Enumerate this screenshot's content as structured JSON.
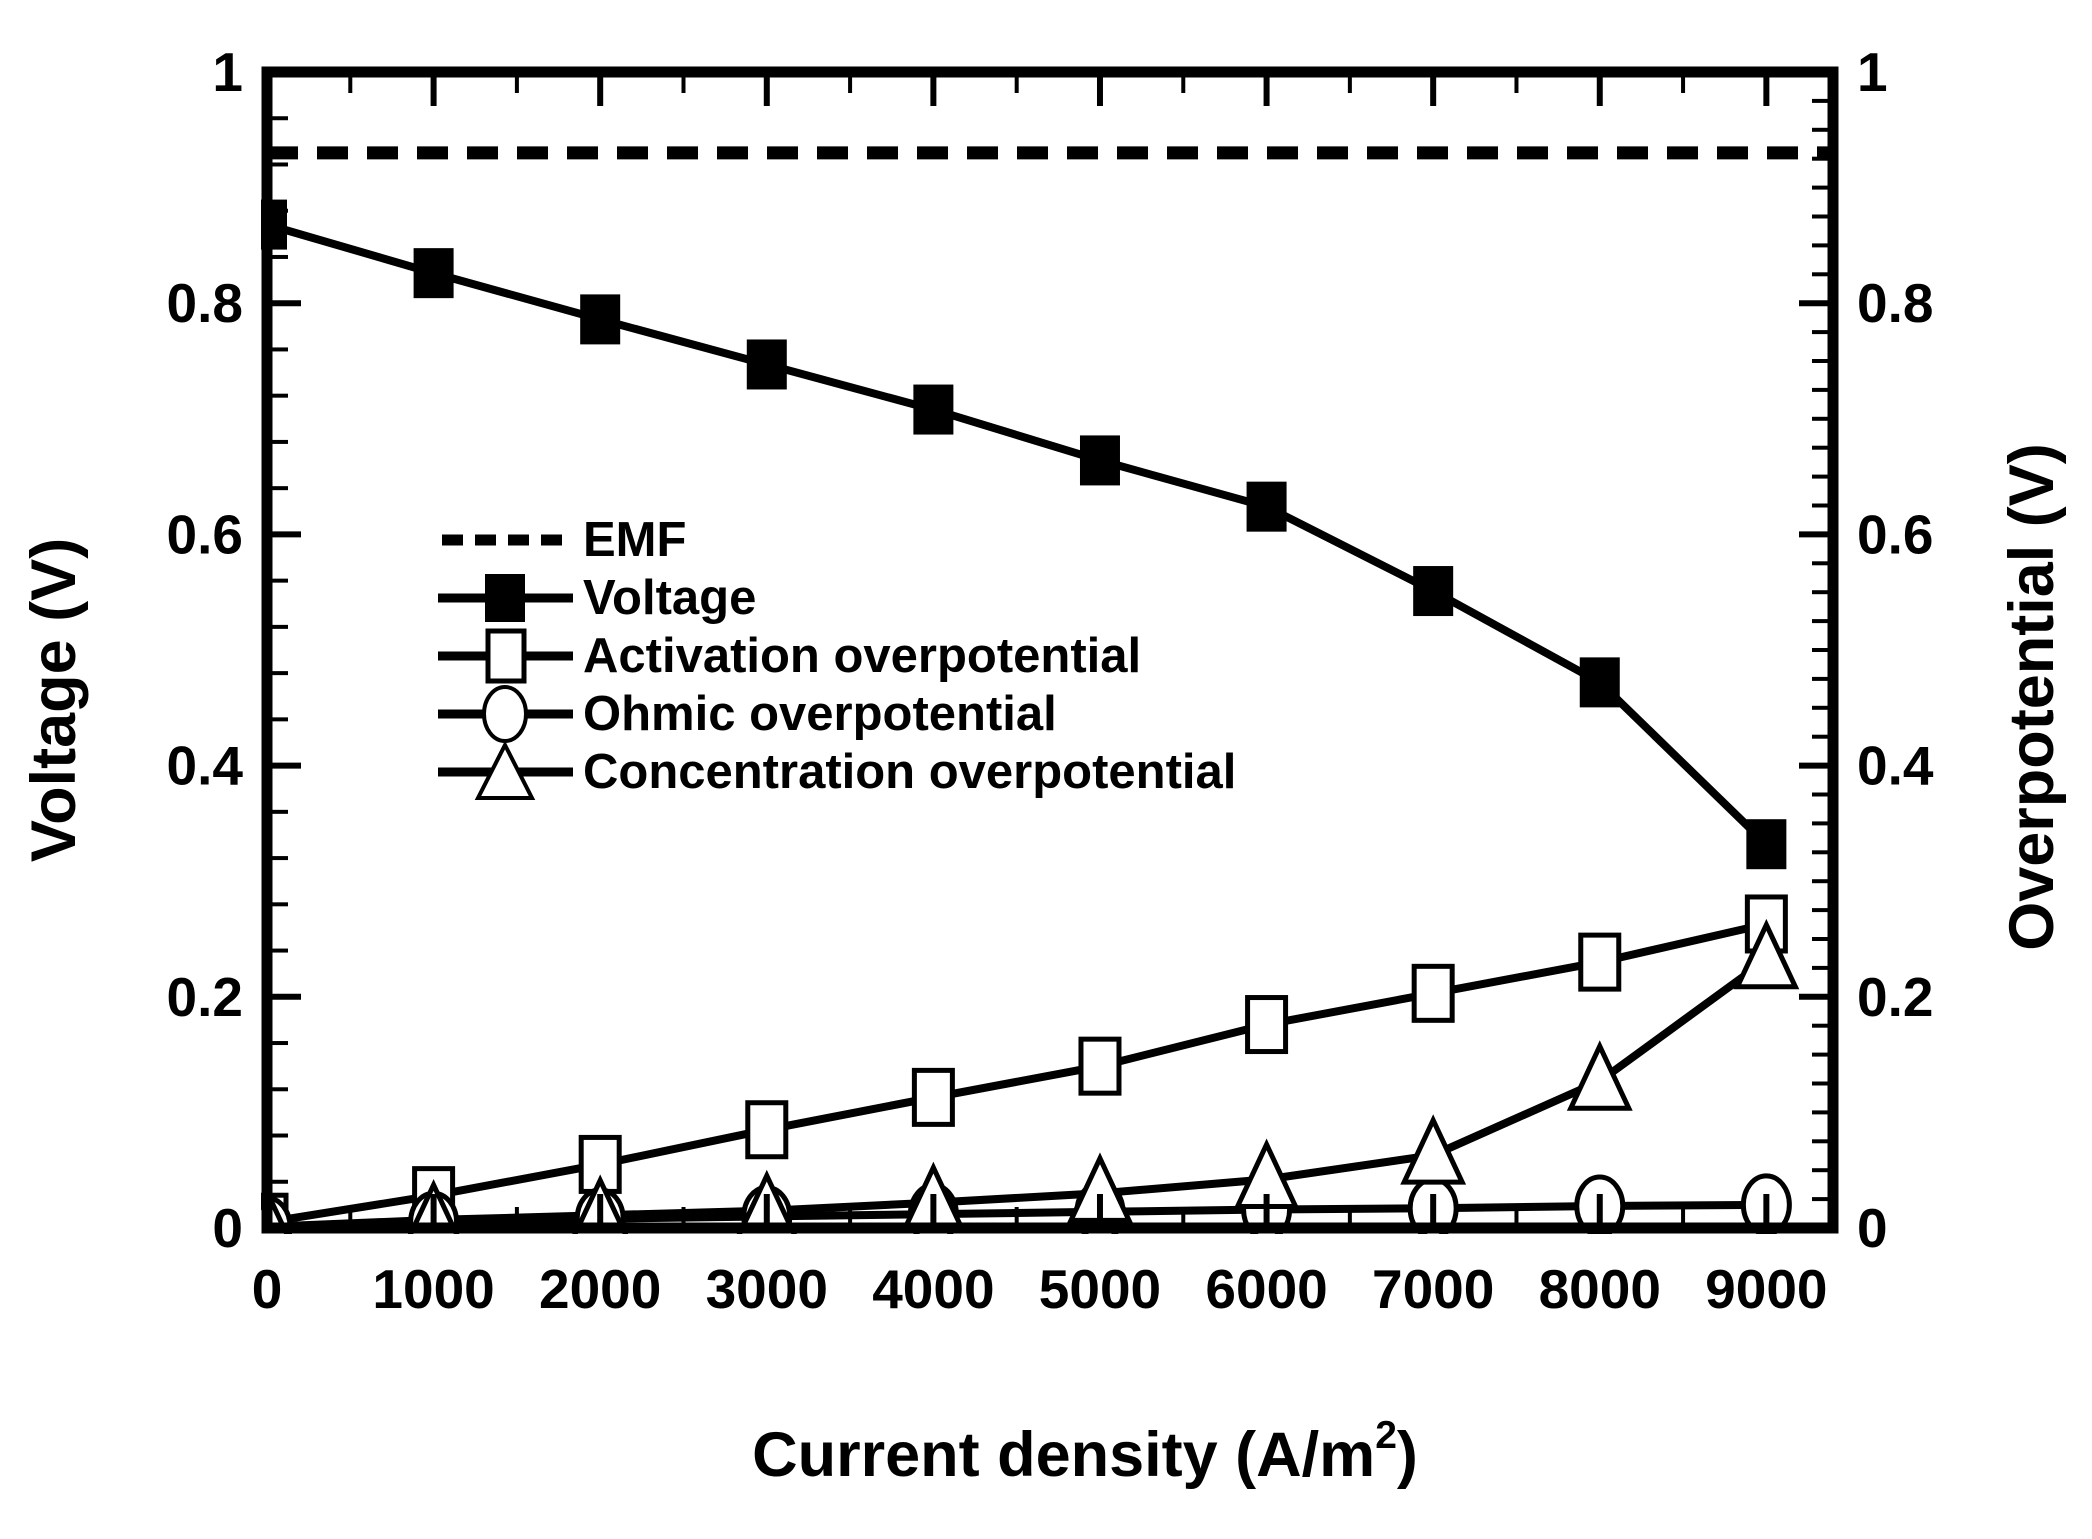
{
  "page": {
    "background_color": "#ffffff",
    "foreground_color": "#000000"
  },
  "chart_data": {
    "type": "line",
    "title": "",
    "xlabel": {
      "text": "Current density (A/m",
      "sup": "2",
      "suffix": ")"
    },
    "ylabel_left": "Voltage (V)",
    "ylabel_right": "Overpotential (V)",
    "grid": "off",
    "legend_position": "inside-upper-left",
    "x_axis": {
      "min": 0,
      "max": 9400,
      "tick_values": [
        0,
        1000,
        2000,
        3000,
        4000,
        5000,
        6000,
        7000,
        8000,
        9000
      ],
      "tick_labels": [
        "0",
        "1000",
        "2000",
        "3000",
        "4000",
        "5000",
        "6000",
        "7000",
        "8000",
        "9000"
      ],
      "minor_step": 500
    },
    "y_axis_left": {
      "min": 0,
      "max": 1,
      "tick_values": [
        0,
        0.2,
        0.4,
        0.6,
        0.8,
        1
      ],
      "tick_labels": [
        "0",
        "0.2",
        "0.4",
        "0.6",
        "0.8",
        "1"
      ],
      "minor_step": 0.04
    },
    "y_axis_right": {
      "min": 0,
      "max": 1,
      "tick_values": [
        0,
        0.2,
        0.4,
        0.6,
        0.8,
        1
      ],
      "tick_labels": [
        "0",
        "0.2",
        "0.4",
        "0.6",
        "0.8",
        "1"
      ],
      "minor_step": 0.025
    },
    "x": [
      0,
      1000,
      2000,
      3000,
      4000,
      5000,
      6000,
      7000,
      8000,
      9000
    ],
    "series": [
      {
        "name": "EMF",
        "line": "dashed",
        "marker": "none",
        "constant": 0.93,
        "extend_to_axis_max": true,
        "values": [
          0.93,
          0.93,
          0.93,
          0.93,
          0.93,
          0.93,
          0.93,
          0.93,
          0.93,
          0.93
        ]
      },
      {
        "name": "Voltage",
        "line": "solid",
        "marker": "filled-square",
        "values": [
          0.868,
          0.826,
          0.786,
          0.747,
          0.708,
          0.664,
          0.624,
          0.551,
          0.472,
          0.332
        ]
      },
      {
        "name": "Activation overpotential",
        "line": "solid",
        "marker": "open-square",
        "values": [
          0.005,
          0.028,
          0.055,
          0.085,
          0.113,
          0.14,
          0.176,
          0.203,
          0.23,
          0.263
        ]
      },
      {
        "name": "Ohmic overpotential",
        "line": "solid",
        "marker": "open-circle",
        "values": [
          0.001,
          0.005,
          0.008,
          0.01,
          0.012,
          0.014,
          0.016,
          0.017,
          0.019,
          0.02
        ]
      },
      {
        "name": "Concentration overpotential",
        "line": "solid",
        "marker": "open-triangle",
        "values": [
          0.001,
          0.007,
          0.011,
          0.015,
          0.022,
          0.03,
          0.042,
          0.063,
          0.127,
          0.232
        ]
      }
    ]
  }
}
